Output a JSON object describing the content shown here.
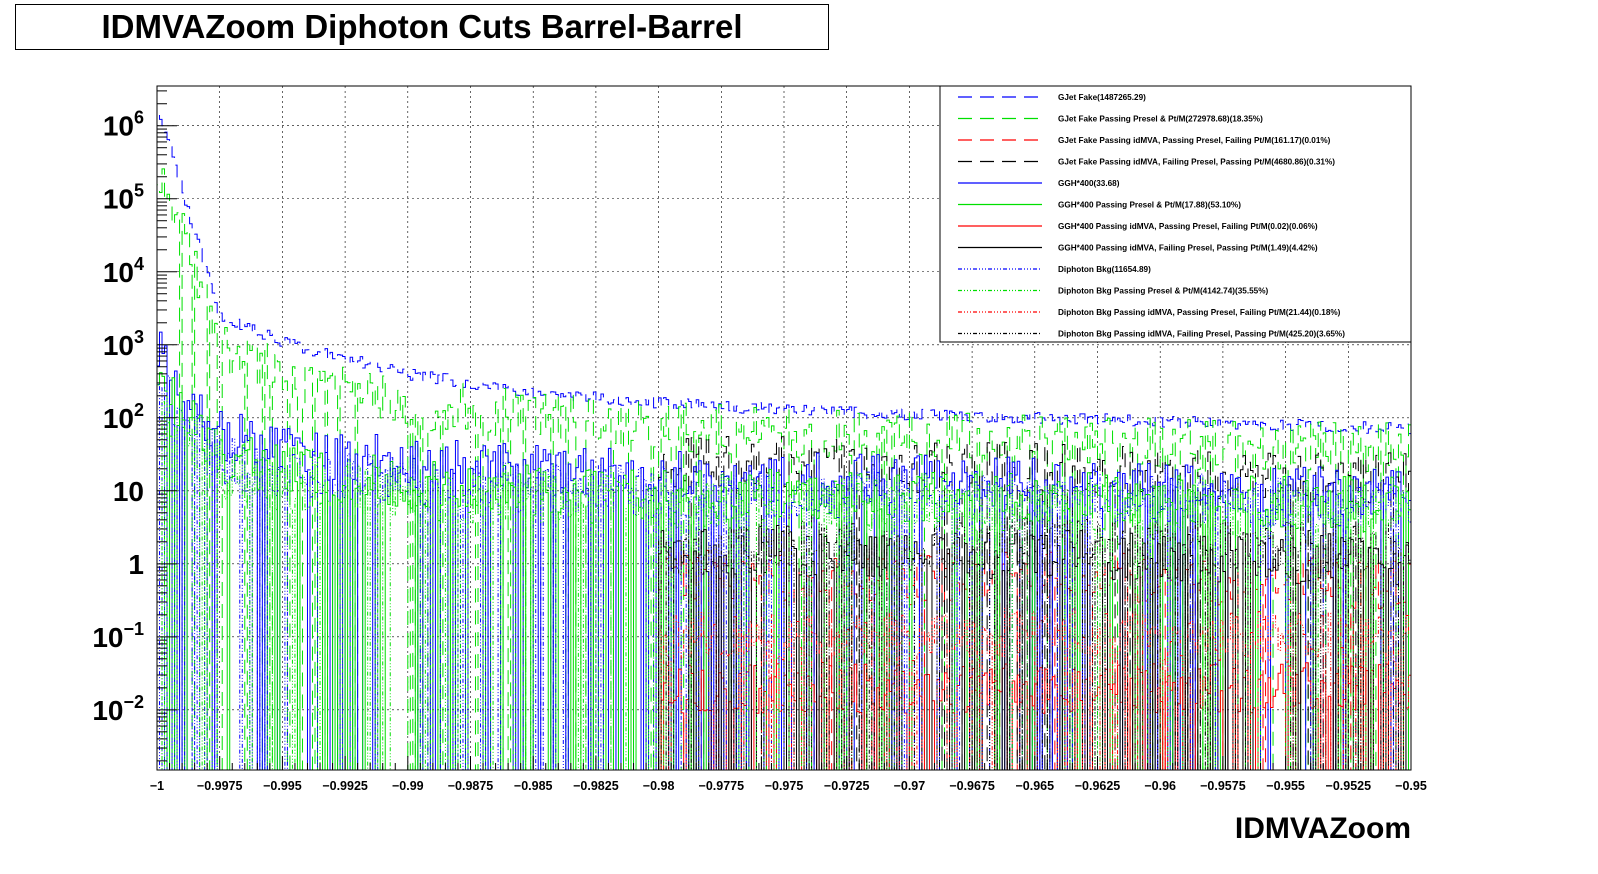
{
  "title": "IDMVAZoom Diphoton Cuts Barrel-Barrel",
  "chart_data": {
    "type": "line",
    "style": "step histogram",
    "title": "IDMVAZoom Diphoton Cuts Barrel-Barrel",
    "xlabel": "IDMVAZoom",
    "ylabel": "",
    "xlim": [
      -1,
      -0.95
    ],
    "ylim": [
      0.0015,
      3500000
    ],
    "yscale": "log",
    "grid": true,
    "legend_position": "top-right",
    "x_ticks": [
      "-1",
      "-0.9975",
      "-0.995",
      "-0.9925",
      "-0.99",
      "-0.9875",
      "-0.985",
      "-0.9825",
      "-0.98",
      "-0.9775",
      "-0.975",
      "-0.9725",
      "-0.97",
      "-0.9675",
      "-0.965",
      "-0.9625",
      "-0.96",
      "-0.9575",
      "-0.955",
      "-0.9525",
      "-0.95"
    ],
    "y_ticks": [
      {
        "value": 1000000,
        "base": "10",
        "exp": "6"
      },
      {
        "value": 100000,
        "base": "10",
        "exp": "5"
      },
      {
        "value": 10000,
        "base": "10",
        "exp": "4"
      },
      {
        "value": 1000,
        "base": "10",
        "exp": "3"
      },
      {
        "value": 100,
        "base": "10",
        "exp": "2"
      },
      {
        "value": 10,
        "base": "10",
        "exp": ""
      },
      {
        "value": 1,
        "base": "1",
        "exp": ""
      },
      {
        "value": 0.1,
        "base": "10",
        "exp": "−1"
      },
      {
        "value": 0.01,
        "base": "10",
        "exp": "−2"
      }
    ],
    "series": [
      {
        "name": "GJet Fake(1487265.29)",
        "color": "#0000ff",
        "dash": "long-dash",
        "x": [
          -1,
          -0.9975,
          -0.995,
          -0.9925,
          -0.99,
          -0.9875,
          -0.985,
          -0.98,
          -0.975,
          -0.97,
          -0.965,
          -0.96,
          -0.955,
          -0.95
        ],
        "y": [
          2000000,
          2500,
          1100,
          650,
          400,
          300,
          220,
          160,
          130,
          110,
          100,
          90,
          80,
          70
        ]
      },
      {
        "name": "GJet Fake Passing Presel & Pt/M(272978.68)(18.35%)",
        "color": "#00e000",
        "dash": "long-dash",
        "x": [
          -1,
          -0.9975,
          -0.995,
          -0.9925,
          -0.99,
          -0.9875,
          -0.985,
          -0.98,
          -0.975,
          -0.97,
          -0.965,
          -0.96,
          -0.955,
          -0.95
        ],
        "y": [
          350000,
          900,
          400,
          220,
          160,
          130,
          110,
          75,
          65,
          55,
          50,
          45,
          40,
          38
        ]
      },
      {
        "name": "GJet Fake Passing idMVA, Passing Presel, Failing Pt/M(161.17)(0.01%)",
        "color": "#ff0000",
        "dash": "long-dash",
        "x": [
          -0.98,
          -0.975,
          -0.97,
          -0.965,
          -0.96,
          -0.955,
          -0.95
        ],
        "y": [
          0.8,
          0.6,
          0.6,
          0.7,
          0.6,
          0.6,
          0.5
        ]
      },
      {
        "name": "GJet Fake Passing idMVA, Failing Presel, Passing Pt/M(4680.86)(0.31%)",
        "color": "#000000",
        "dash": "long-dash",
        "x": [
          -0.98,
          -0.975,
          -0.97,
          -0.965,
          -0.96,
          -0.955,
          -0.95
        ],
        "y": [
          25,
          25,
          20,
          22,
          18,
          16,
          15
        ]
      },
      {
        "name": "GGH*400(33.68)",
        "color": "#0000ff",
        "dash": "solid",
        "x": [
          -1,
          -0.9975,
          -0.995,
          -0.9925,
          -0.99,
          -0.9875,
          -0.985,
          -0.98,
          -0.975,
          -0.97,
          -0.965,
          -0.96,
          -0.955,
          -0.95
        ],
        "y": [
          800,
          60,
          35,
          28,
          25,
          22,
          20,
          16,
          15,
          14,
          13,
          12,
          11,
          10
        ]
      },
      {
        "name": "GGH*400 Passing Presel & Pt/M(17.88)(53.10%)",
        "color": "#00e000",
        "dash": "solid",
        "x": [
          -1,
          -0.9975,
          -0.995,
          -0.9925,
          -0.99,
          -0.9875,
          -0.985,
          -0.98,
          -0.975,
          -0.97,
          -0.965,
          -0.96,
          -0.955,
          -0.95
        ],
        "y": [
          400,
          30,
          20,
          15,
          13,
          11,
          10,
          9,
          9,
          8,
          8,
          8,
          7,
          7
        ]
      },
      {
        "name": "GGH*400 Passing idMVA, Passing Presel, Failing Pt/M(0.02)(0.06%)",
        "color": "#ff0000",
        "dash": "solid",
        "x": [
          -0.98,
          -0.975,
          -0.97,
          -0.965,
          -0.96,
          -0.955,
          -0.95
        ],
        "y": [
          0.02,
          0.02,
          0.02,
          0.02,
          0.02,
          0.02,
          0.02
        ]
      },
      {
        "name": "GGH*400 Passing idMVA, Failing Presel, Passing Pt/M(1.49)(4.42%)",
        "color": "#000000",
        "dash": "solid",
        "x": [
          -0.98,
          -0.975,
          -0.97,
          -0.965,
          -0.96,
          -0.955,
          -0.95
        ],
        "y": [
          1.5,
          1.5,
          1.3,
          1.4,
          1.2,
          1.2,
          1.1
        ]
      },
      {
        "name": "Diphoton Bkg(11654.89)",
        "color": "#0000ff",
        "dash": "dash-dot",
        "x": [
          -1,
          -0.9975,
          -0.995,
          -0.9925,
          -0.99,
          -0.9875,
          -0.985,
          -0.98,
          -0.975,
          -0.97,
          -0.965,
          -0.96,
          -0.955,
          -0.95
        ],
        "y": [
          300,
          25,
          18,
          15,
          13,
          12,
          11,
          10,
          9,
          9,
          8,
          8,
          7,
          7
        ]
      },
      {
        "name": "Diphoton Bkg Passing Presel & Pt/M(4142.74)(35.55%)",
        "color": "#00e000",
        "dash": "dash-dot",
        "x": [
          -1,
          -0.9975,
          -0.995,
          -0.9925,
          -0.99,
          -0.9875,
          -0.985,
          -0.98,
          -0.975,
          -0.97,
          -0.965,
          -0.96,
          -0.955,
          -0.95
        ],
        "y": [
          200,
          15,
          11,
          10,
          9,
          8,
          8,
          7,
          7,
          6,
          6,
          6,
          5,
          5
        ]
      },
      {
        "name": "Diphoton Bkg Passing idMVA, Passing Presel, Failing Pt/M(21.44)(0.18%)",
        "color": "#ff0000",
        "dash": "dash-dot",
        "x": [
          -0.98,
          -0.975,
          -0.97,
          -0.965,
          -0.96,
          -0.955,
          -0.95
        ],
        "y": [
          0.1,
          0.1,
          0.1,
          0.12,
          0.1,
          0.1,
          0.1
        ]
      },
      {
        "name": "Diphoton Bkg Passing idMVA, Failing Presel, Passing Pt/M(425.20)(3.65%)",
        "color": "#000000",
        "dash": "dash-dot",
        "x": [
          -0.98,
          -0.975,
          -0.97,
          -0.965,
          -0.96,
          -0.955,
          -0.95
        ],
        "y": [
          1.5,
          1.8,
          1.8,
          2,
          1.8,
          1.8,
          1.6
        ]
      }
    ]
  }
}
